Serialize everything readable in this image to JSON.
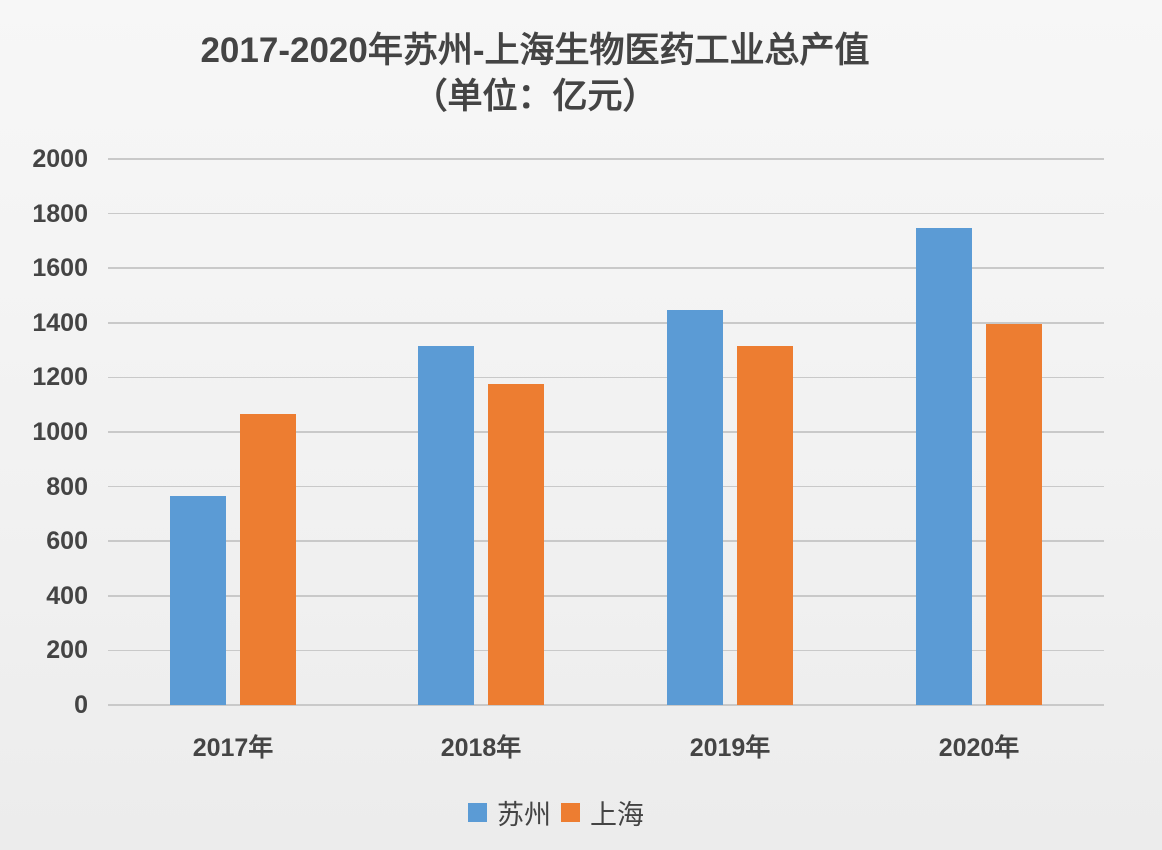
{
  "chart_data": {
    "type": "bar",
    "title": "2017-2020年苏州-上海生物医药工业总产值",
    "subtitle": "（单位：亿元）",
    "xlabel": "",
    "ylabel": "",
    "categories": [
      "2017年",
      "2018年",
      "2019年",
      "2020年"
    ],
    "series": [
      {
        "name": "苏州",
        "color": "#5b9bd5",
        "values": [
          766,
          1315,
          1447,
          1747
        ]
      },
      {
        "name": "上海",
        "color": "#ed7d31",
        "values": [
          1066,
          1176,
          1315,
          1396
        ]
      }
    ],
    "ylim": [
      0,
      2000
    ],
    "yticks": [
      0,
      200,
      400,
      600,
      800,
      1000,
      1200,
      1400,
      1600,
      1800,
      2000
    ],
    "grid": true,
    "legend_position": "bottom"
  },
  "labels": {
    "title_line1": "2017-2020年苏州-上海生物医药工业总产值",
    "title_line2": "（单位：亿元）"
  }
}
